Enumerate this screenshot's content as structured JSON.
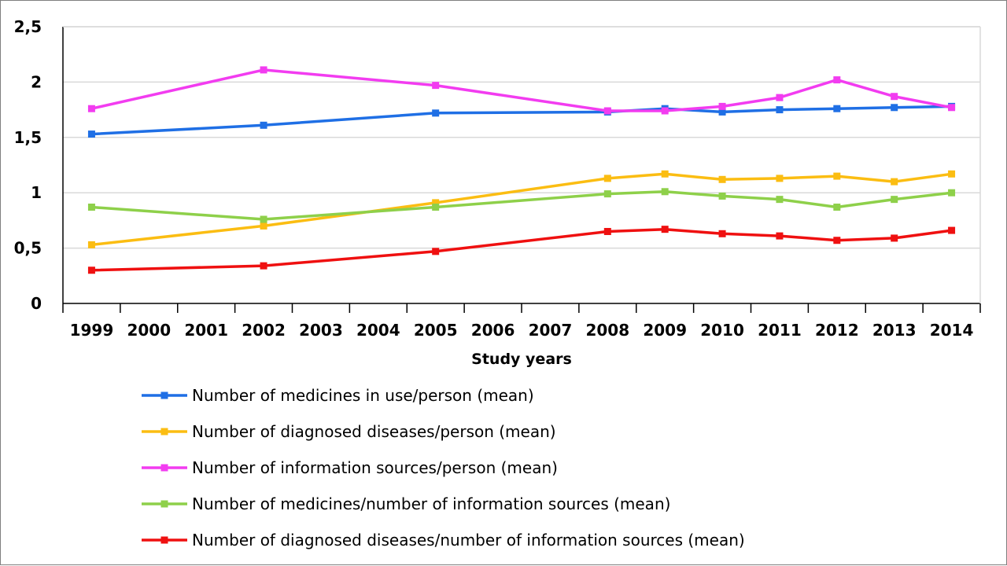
{
  "chart_data": {
    "type": "line",
    "title": "",
    "xlabel": "Study years",
    "ylabel": "",
    "ylim": [
      0,
      2.5
    ],
    "yticks": [
      "0",
      "0,5",
      "1",
      "1,5",
      "2",
      "2,5"
    ],
    "x": [
      "1999",
      "2000",
      "2001",
      "2002",
      "2003",
      "2004",
      "2005",
      "2006",
      "2007",
      "2008",
      "2009",
      "2010",
      "2011",
      "2012",
      "2013",
      "2014"
    ],
    "grid": "horizontal",
    "legend_position": "bottom",
    "series": [
      {
        "name": "Number of medicines in use/person (mean)",
        "color": "#1f6fe5",
        "x": [
          "1999",
          "2002",
          "2005",
          "2008",
          "2009",
          "2010",
          "2011",
          "2012",
          "2013",
          "2014"
        ],
        "values": [
          1.53,
          1.61,
          1.72,
          1.73,
          1.76,
          1.73,
          1.75,
          1.76,
          1.77,
          1.78
        ]
      },
      {
        "name": "Number of diagnosed diseases/person (mean)",
        "color": "#fbbd12",
        "x": [
          "1999",
          "2002",
          "2005",
          "2008",
          "2009",
          "2010",
          "2011",
          "2012",
          "2013",
          "2014"
        ],
        "values": [
          0.53,
          0.7,
          0.91,
          1.13,
          1.17,
          1.12,
          1.13,
          1.15,
          1.1,
          1.17
        ]
      },
      {
        "name": "Number of information sources/person (mean)",
        "color": "#f23cf0",
        "x": [
          "1999",
          "2002",
          "2005",
          "2008",
          "2009",
          "2010",
          "2011",
          "2012",
          "2013",
          "2014"
        ],
        "values": [
          1.76,
          2.11,
          1.97,
          1.74,
          1.74,
          1.78,
          1.86,
          2.02,
          1.87,
          1.77
        ]
      },
      {
        "name": "Number of medicines/number of information sources (mean)",
        "color": "#8ed04a",
        "x": [
          "1999",
          "2002",
          "2005",
          "2008",
          "2009",
          "2010",
          "2011",
          "2012",
          "2013",
          "2014"
        ],
        "values": [
          0.87,
          0.76,
          0.87,
          0.99,
          1.01,
          0.97,
          0.94,
          0.87,
          0.94,
          1.0
        ]
      },
      {
        "name": "Number of diagnosed diseases/number of information sources (mean)",
        "color": "#ef1010",
        "x": [
          "1999",
          "2002",
          "2005",
          "2008",
          "2009",
          "2010",
          "2011",
          "2012",
          "2013",
          "2014"
        ],
        "values": [
          0.3,
          0.34,
          0.47,
          0.65,
          0.67,
          0.63,
          0.61,
          0.57,
          0.59,
          0.66
        ]
      }
    ]
  }
}
